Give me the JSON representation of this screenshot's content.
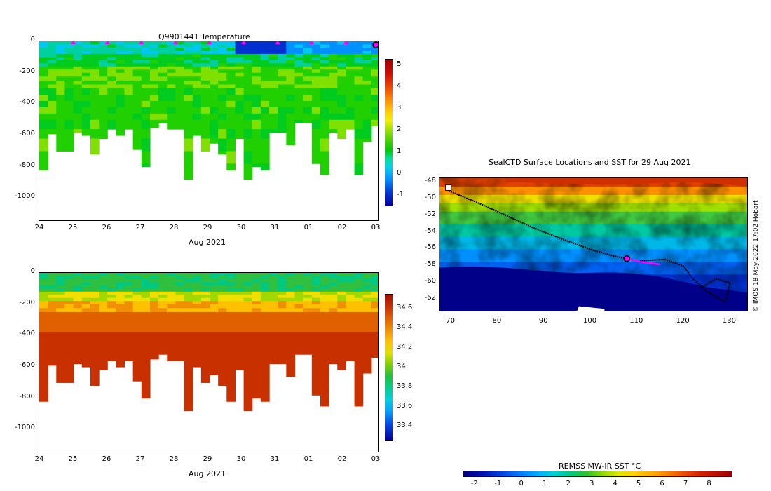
{
  "chart_data": [
    {
      "type": "heatmap",
      "title": "Q9901441  Temperature",
      "xlabel": "Aug 2021",
      "ylabel": "",
      "x_tick_labels": [
        "24",
        "25",
        "26",
        "27",
        "28",
        "29",
        "30",
        "31",
        "01",
        "02",
        "03"
      ],
      "y_tick_labels": [
        "0",
        "-200",
        "-400",
        "-600",
        "-800",
        "-1000"
      ],
      "ylim": [
        -1150,
        0
      ],
      "colorbar_ticks": [
        "5",
        "4",
        "3",
        "2",
        "1",
        "0",
        "-1"
      ],
      "colorbar_range": [
        -1.5,
        5.3
      ],
      "profile_bottom_depths": [
        -820,
        -590,
        -700,
        -700,
        -580,
        -600,
        -720,
        -620,
        -560,
        -600,
        -560,
        -690,
        -800,
        -550,
        -520,
        -560,
        -560,
        -880,
        -600,
        -700,
        -650,
        -720,
        -820,
        -620,
        -880,
        -800,
        -820,
        -580,
        -580,
        -660,
        -520,
        -520,
        -780,
        -850,
        -580,
        -620,
        -560,
        -850,
        -640,
        -540
      ],
      "profiles_temperature": {
        "surface_layer_0_to_100m": "0.5 to 1.5 on Aug 24-29, 0 to -1 on Aug 30-31, 0 to 0.5 on Aug 31 - Sep 03",
        "thermocline_100_to_300m": "1.8 to 2.5",
        "deep_300m_and_below": "1.5 to 2.3"
      }
    },
    {
      "type": "heatmap",
      "title": "",
      "xlabel": "Aug 2021",
      "ylabel": "",
      "x_tick_labels": [
        "24",
        "25",
        "26",
        "27",
        "28",
        "29",
        "30",
        "31",
        "01",
        "02",
        "03"
      ],
      "y_tick_labels": [
        "0",
        "-200",
        "-400",
        "-600",
        "-800",
        "-1000"
      ],
      "ylim": [
        -1150,
        0
      ],
      "colorbar_ticks": [
        "34.6",
        "34.4",
        "34.2",
        "34",
        "33.8",
        "33.6",
        "33.4"
      ],
      "colorbar_range": [
        33.25,
        34.75
      ],
      "profiles_salinity": {
        "surface_layer_0_to_150m": "33.8 to 33.9",
        "halocline_150_to_300m": "34.2 to 34.5",
        "deep_300m_and_below": "34.6 to 34.75"
      }
    },
    {
      "type": "heatmap",
      "title": "SealCTD Surface Locations and SST for 29 Aug 2021",
      "xlabel": "",
      "ylabel": "",
      "x_tick_labels": [
        "70",
        "80",
        "90",
        "100",
        "110",
        "120",
        "130"
      ],
      "y_tick_labels": [
        "-48",
        "-50",
        "-52",
        "-54",
        "-56",
        "-58",
        "-60",
        "-62"
      ],
      "xlim": [
        67.5,
        134
      ],
      "ylim": [
        -63.5,
        -47.5
      ],
      "colorbar_title": "REMSS MW-IR SST °C",
      "colorbar_ticks": [
        "-2",
        "-1",
        "0",
        "1",
        "2",
        "3",
        "4",
        "5",
        "6",
        "7",
        "8"
      ],
      "colorbar_range": [
        -2.5,
        9
      ],
      "track_points": [
        {
          "lon": 69.5,
          "lat": -49.0
        },
        {
          "lon": 76,
          "lat": -50.5
        },
        {
          "lon": 82,
          "lat": -52
        },
        {
          "lon": 88,
          "lat": -53.5
        },
        {
          "lon": 94,
          "lat": -54.8
        },
        {
          "lon": 100,
          "lat": -56
        },
        {
          "lon": 105,
          "lat": -56.8
        },
        {
          "lon": 110,
          "lat": -57.4
        },
        {
          "lon": 116,
          "lat": -57.2
        },
        {
          "lon": 120,
          "lat": -58
        },
        {
          "lon": 122,
          "lat": -59.5
        },
        {
          "lon": 125,
          "lat": -61
        },
        {
          "lon": 129,
          "lat": -62.3
        },
        {
          "lon": 130,
          "lat": -60
        },
        {
          "lon": 127,
          "lat": -59.5
        },
        {
          "lon": 124,
          "lat": -60.5
        }
      ],
      "highlight_segment": [
        {
          "lon": 107.8,
          "lat": -57.1
        },
        {
          "lon": 111,
          "lat": -57.5
        },
        {
          "lon": 115,
          "lat": -57.8
        }
      ],
      "current_location": {
        "lon": 107.8,
        "lat": -57.1
      }
    }
  ],
  "credit": "© IMOS 18-May-2022 17:02 Hobart",
  "colors": {
    "accent_marker": "#ff00ff",
    "track": "#000000"
  }
}
